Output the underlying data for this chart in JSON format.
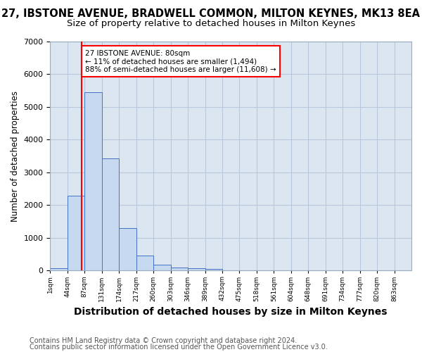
{
  "title1": "27, IBSTONE AVENUE, BRADWELL COMMON, MILTON KEYNES, MK13 8EA",
  "title2": "Size of property relative to detached houses in Milton Keynes",
  "xlabel": "Distribution of detached houses by size in Milton Keynes",
  "ylabel": "Number of detached properties",
  "footer1": "Contains HM Land Registry data © Crown copyright and database right 2024.",
  "footer2": "Contains public sector information licensed under the Open Government Licence v3.0.",
  "bin_labels": [
    "1sqm",
    "44sqm",
    "87sqm",
    "131sqm",
    "174sqm",
    "217sqm",
    "260sqm",
    "303sqm",
    "346sqm",
    "389sqm",
    "432sqm",
    "475sqm",
    "518sqm",
    "561sqm",
    "604sqm",
    "648sqm",
    "691sqm",
    "734sqm",
    "777sqm",
    "820sqm",
    "863sqm"
  ],
  "bar_values": [
    80,
    2280,
    5450,
    3430,
    1300,
    450,
    190,
    100,
    70,
    50,
    0,
    0,
    0,
    0,
    0,
    0,
    0,
    0,
    0,
    0,
    0
  ],
  "bar_color": "#c6d9f0",
  "bar_edge_color": "#4472c4",
  "annotation_text": "27 IBSTONE AVENUE: 80sqm\n← 11% of detached houses are smaller (1,494)\n88% of semi-detached houses are larger (11,608) →",
  "vline_color": "#ff0000",
  "ylim": [
    0,
    7000
  ],
  "yticks": [
    0,
    1000,
    2000,
    3000,
    4000,
    5000,
    6000,
    7000
  ],
  "background_color": "#ffffff",
  "axes_bg_color": "#dce6f1",
  "grid_color": "#b8c8dc",
  "title1_fontsize": 10.5,
  "title2_fontsize": 9.5,
  "xlabel_fontsize": 10,
  "ylabel_fontsize": 8.5,
  "footer_fontsize": 7.0
}
